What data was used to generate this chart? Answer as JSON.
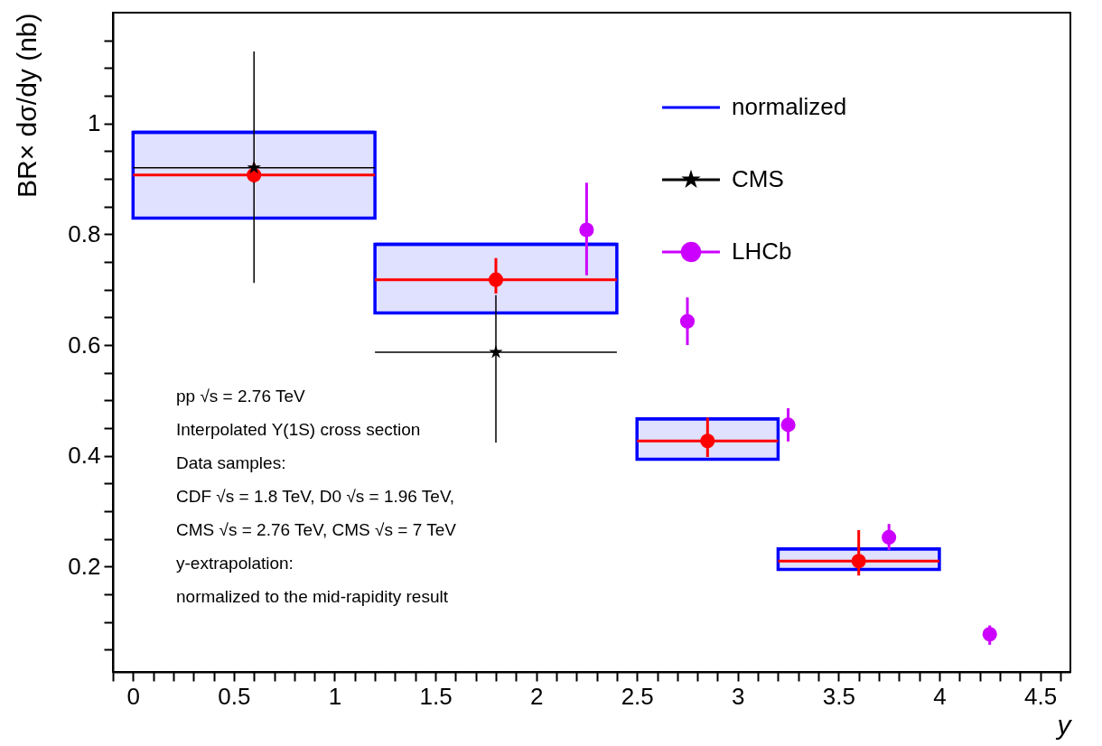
{
  "chart_data": {
    "type": "scatter",
    "ylabel": "BR× dσ/dy (nb)",
    "xlabel": "y",
    "xlim": [
      -0.1,
      4.65
    ],
    "ylim": [
      0.01,
      1.2
    ],
    "xticks": [
      {
        "value": -0.1,
        "label": null
      },
      0,
      {
        "value": 0.1,
        "label": null
      },
      {
        "value": 0.2,
        "label": null
      },
      {
        "value": 0.3,
        "label": null
      },
      {
        "value": 0.4,
        "label": null
      },
      0.5,
      {
        "value": 0.6,
        "label": null
      },
      {
        "value": 0.7,
        "label": null
      },
      {
        "value": 0.8,
        "label": null
      },
      {
        "value": 0.9,
        "label": null
      },
      1,
      {
        "value": 1.1,
        "label": null
      },
      {
        "value": 1.2,
        "label": null
      },
      {
        "value": 1.3,
        "label": null
      },
      {
        "value": 1.4,
        "label": null
      },
      1.5,
      {
        "value": 1.6,
        "label": null
      },
      {
        "value": 1.7,
        "label": null
      },
      {
        "value": 1.8,
        "label": null
      },
      {
        "value": 1.9,
        "label": null
      },
      2,
      {
        "value": 2.1,
        "label": null
      },
      {
        "value": 2.2,
        "label": null
      },
      {
        "value": 2.3,
        "label": null
      },
      {
        "value": 2.4,
        "label": null
      },
      2.5,
      {
        "value": 2.6,
        "label": null
      },
      {
        "value": 2.7,
        "label": null
      },
      {
        "value": 2.8,
        "label": null
      },
      {
        "value": 2.9,
        "label": null
      },
      3,
      {
        "value": 3.1,
        "label": null
      },
      {
        "value": 3.2,
        "label": null
      },
      {
        "value": 3.3,
        "label": null
      },
      {
        "value": 3.4,
        "label": null
      },
      3.5,
      {
        "value": 3.6,
        "label": null
      },
      {
        "value": 3.7,
        "label": null
      },
      {
        "value": 3.8,
        "label": null
      },
      {
        "value": 3.9,
        "label": null
      },
      4,
      {
        "value": 4.1,
        "label": null
      },
      {
        "value": 4.2,
        "label": null
      },
      {
        "value": 4.3,
        "label": null
      },
      {
        "value": 4.4,
        "label": null
      },
      4.5,
      {
        "value": 4.6,
        "label": null
      }
    ],
    "yticks": [
      {
        "value": 0.05,
        "label": null
      },
      {
        "value": 0.1,
        "label": null
      },
      {
        "value": 0.15,
        "label": null
      },
      0.2,
      {
        "value": 0.25,
        "label": null
      },
      {
        "value": 0.3,
        "label": null
      },
      {
        "value": 0.35,
        "label": null
      },
      0.4,
      {
        "value": 0.45,
        "label": null
      },
      {
        "value": 0.5,
        "label": null
      },
      {
        "value": 0.55,
        "label": null
      },
      0.6,
      {
        "value": 0.65,
        "label": null
      },
      {
        "value": 0.7,
        "label": null
      },
      {
        "value": 0.75,
        "label": null
      },
      0.8,
      {
        "value": 0.85,
        "label": null
      },
      {
        "value": 0.9,
        "label": null
      },
      {
        "value": 0.95,
        "label": null
      },
      1,
      {
        "value": 1.05,
        "label": null
      },
      {
        "value": 1.1,
        "label": null
      },
      {
        "value": 1.15,
        "label": null
      }
    ],
    "grid": false,
    "legend": "top right",
    "series": [
      {
        "name": "normalized",
        "type": "bar",
        "color": "#0000ff",
        "x": [
          0.6,
          1.8,
          2.85,
          3.6
        ],
        "base": [
          0.829,
          0.658,
          0.394,
          0.195
        ],
        "values": [
          0.155,
          0.124,
          0.073,
          0.037
        ],
        "xerrors": [
          0.6,
          0.6,
          0.35,
          0.4
        ]
      },
      {
        "color": "#ff0000",
        "marker": "circle",
        "x": [
          0.6,
          1.8,
          2.85,
          3.6
        ],
        "values": [
          0.907,
          0.718,
          0.427,
          0.21
        ],
        "errors": [
          [
            0.893,
            0.928
          ],
          [
            0.693,
            0.757
          ],
          [
            0.398,
            0.469
          ],
          [
            0.184,
            0.266
          ]
        ],
        "xerrors": [
          0.6,
          0.6,
          0.35,
          0.4
        ]
      },
      {
        "name": "CMS",
        "color": "#000000",
        "marker": "star",
        "x": [
          0.6,
          1.8
        ],
        "values": [
          0.92,
          0.587
        ],
        "errors": [
          [
            0.712,
            1.13
          ],
          [
            0.424,
            0.69
          ]
        ],
        "xerrors": [
          0.6,
          0.6
        ]
      },
      {
        "name": "LHCb",
        "color": "#cc00ff",
        "marker": "circle",
        "x": [
          2.25,
          2.75,
          3.25,
          3.75,
          4.25
        ],
        "values": [
          0.808,
          0.643,
          0.456,
          0.253,
          0.078
        ],
        "errors": [
          [
            0.726,
            0.893
          ],
          [
            0.6,
            0.686
          ],
          [
            0.426,
            0.486
          ],
          [
            0.23,
            0.277
          ],
          [
            0.059,
            0.094
          ]
        ]
      }
    ],
    "annotations": [
      "pp √s = 2.76 TeV",
      "Interpolated Υ(1S) cross section",
      "Data samples:",
      "CDF √s = 1.8 TeV, D0 √s = 1.96 TeV,",
      "CMS √s = 2.76 TeV, CMS √s = 7 TeV",
      "y-extrapolation:",
      "normalized to the mid-rapidity result"
    ]
  }
}
